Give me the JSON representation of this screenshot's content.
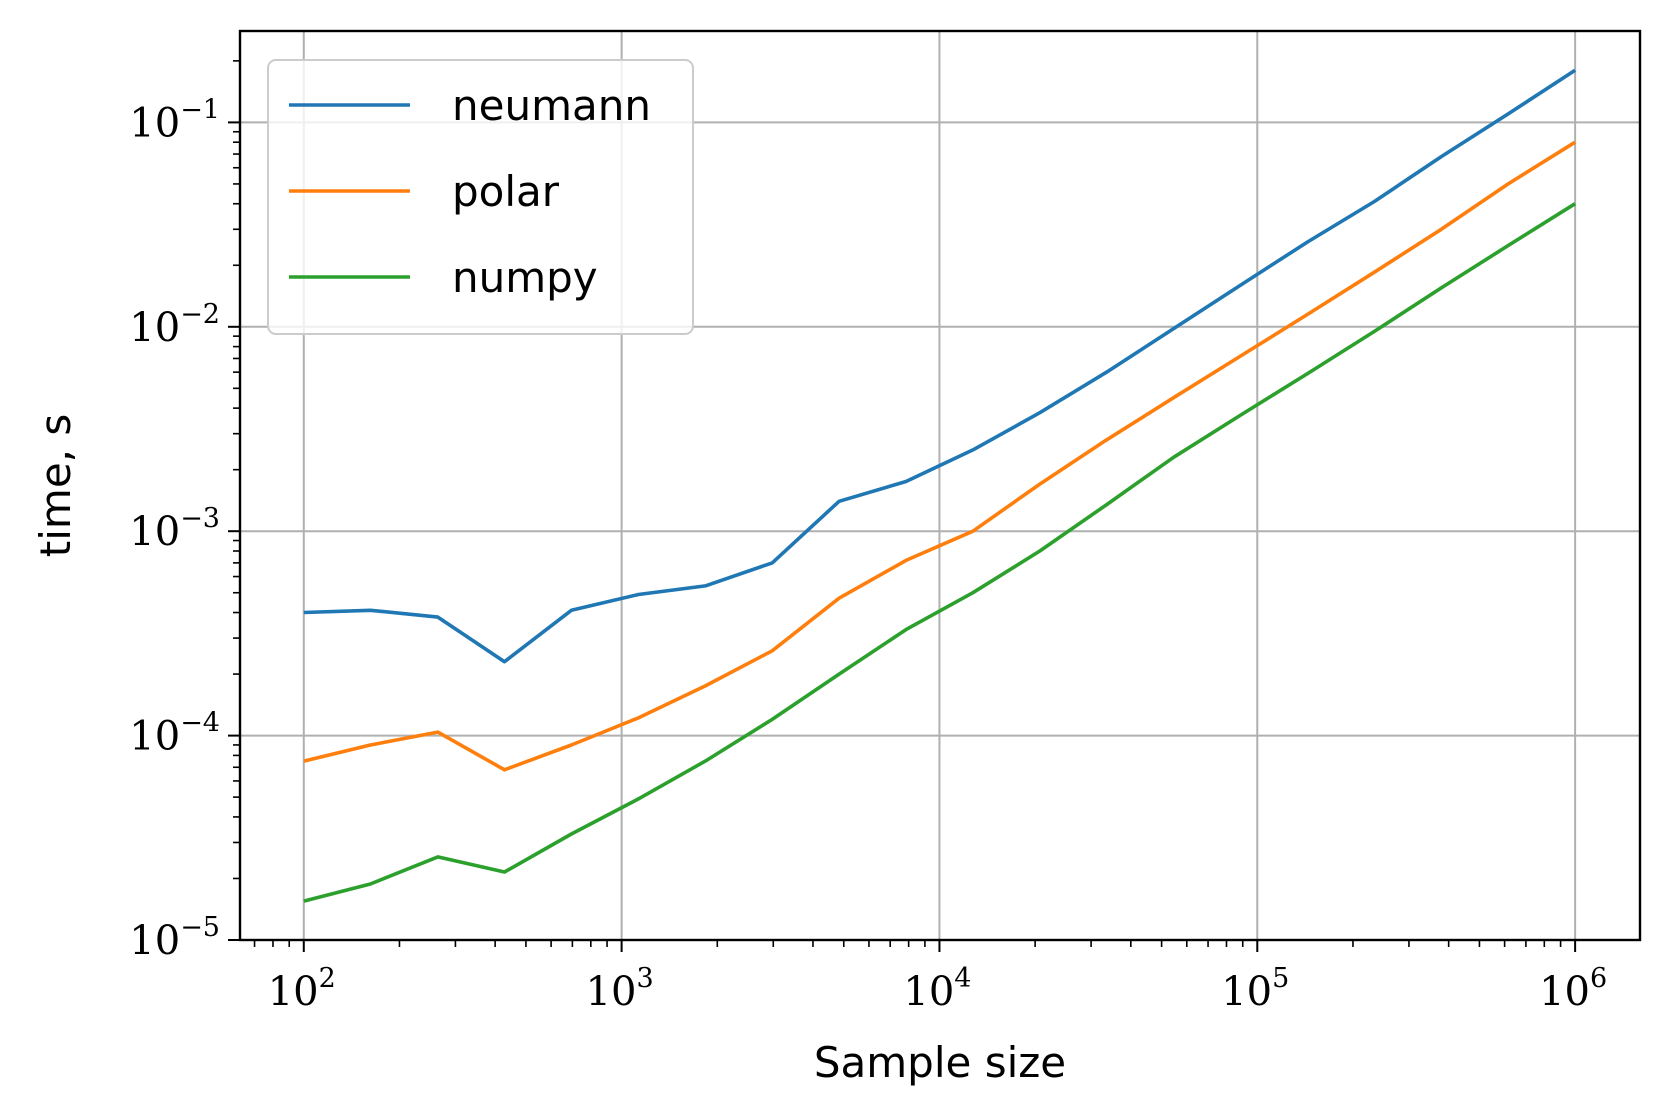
{
  "chart_data": {
    "type": "line",
    "xlabel": "Sample size",
    "ylabel": "time, s",
    "xscale": "log",
    "yscale": "log",
    "xlim": [
      63,
      1600000
    ],
    "ylim": [
      1e-05,
      0.28
    ],
    "grid": true,
    "legend": "top-left",
    "x_ticks": [
      {
        "base": "10",
        "exp": "2",
        "value": 100
      },
      {
        "base": "10",
        "exp": "3",
        "value": 1000
      },
      {
        "base": "10",
        "exp": "4",
        "value": 10000
      },
      {
        "base": "10",
        "exp": "5",
        "value": 100000
      },
      {
        "base": "10",
        "exp": "6",
        "value": 1000000
      }
    ],
    "y_ticks": [
      {
        "base": "10",
        "exp": "−1",
        "value": 0.1
      },
      {
        "base": "10",
        "exp": "−2",
        "value": 0.01
      },
      {
        "base": "10",
        "exp": "−3",
        "value": 0.001
      },
      {
        "base": "10",
        "exp": "−4",
        "value": 0.0001
      },
      {
        "base": "10",
        "exp": "−5",
        "value": 1e-05
      }
    ],
    "x": [
      100,
      162,
      264,
      428,
      695,
      1129,
      1833,
      2976,
      4833,
      7848,
      12743,
      20691,
      33598,
      54556,
      88587,
      143845,
      233572,
      379269,
      615848,
      1000000
    ],
    "series": [
      {
        "name": "neumann",
        "color": "#1f77b4",
        "values": [
          0.0004,
          0.00041,
          0.00038,
          0.00023,
          0.00041,
          0.00049,
          0.00054,
          0.0007,
          0.0014,
          0.00175,
          0.0025,
          0.0038,
          0.006,
          0.0098,
          0.016,
          0.026,
          0.041,
          0.068,
          0.11,
          0.18
        ]
      },
      {
        "name": "polar",
        "color": "#ff7f0e",
        "values": [
          7.5e-05,
          9e-05,
          0.000104,
          6.8e-05,
          9e-05,
          0.000122,
          0.000175,
          0.00026,
          0.00047,
          0.00072,
          0.001,
          0.0017,
          0.0028,
          0.0045,
          0.0072,
          0.0115,
          0.0185,
          0.03,
          0.05,
          0.08
        ]
      },
      {
        "name": "numpy",
        "color": "#2ca02c",
        "values": [
          1.55e-05,
          1.88e-05,
          2.55e-05,
          2.15e-05,
          3.3e-05,
          4.9e-05,
          7.5e-05,
          0.00012,
          0.0002,
          0.00033,
          0.0005,
          0.0008,
          0.00135,
          0.0023,
          0.0037,
          0.0059,
          0.0095,
          0.0155,
          0.025,
          0.04
        ]
      }
    ]
  }
}
